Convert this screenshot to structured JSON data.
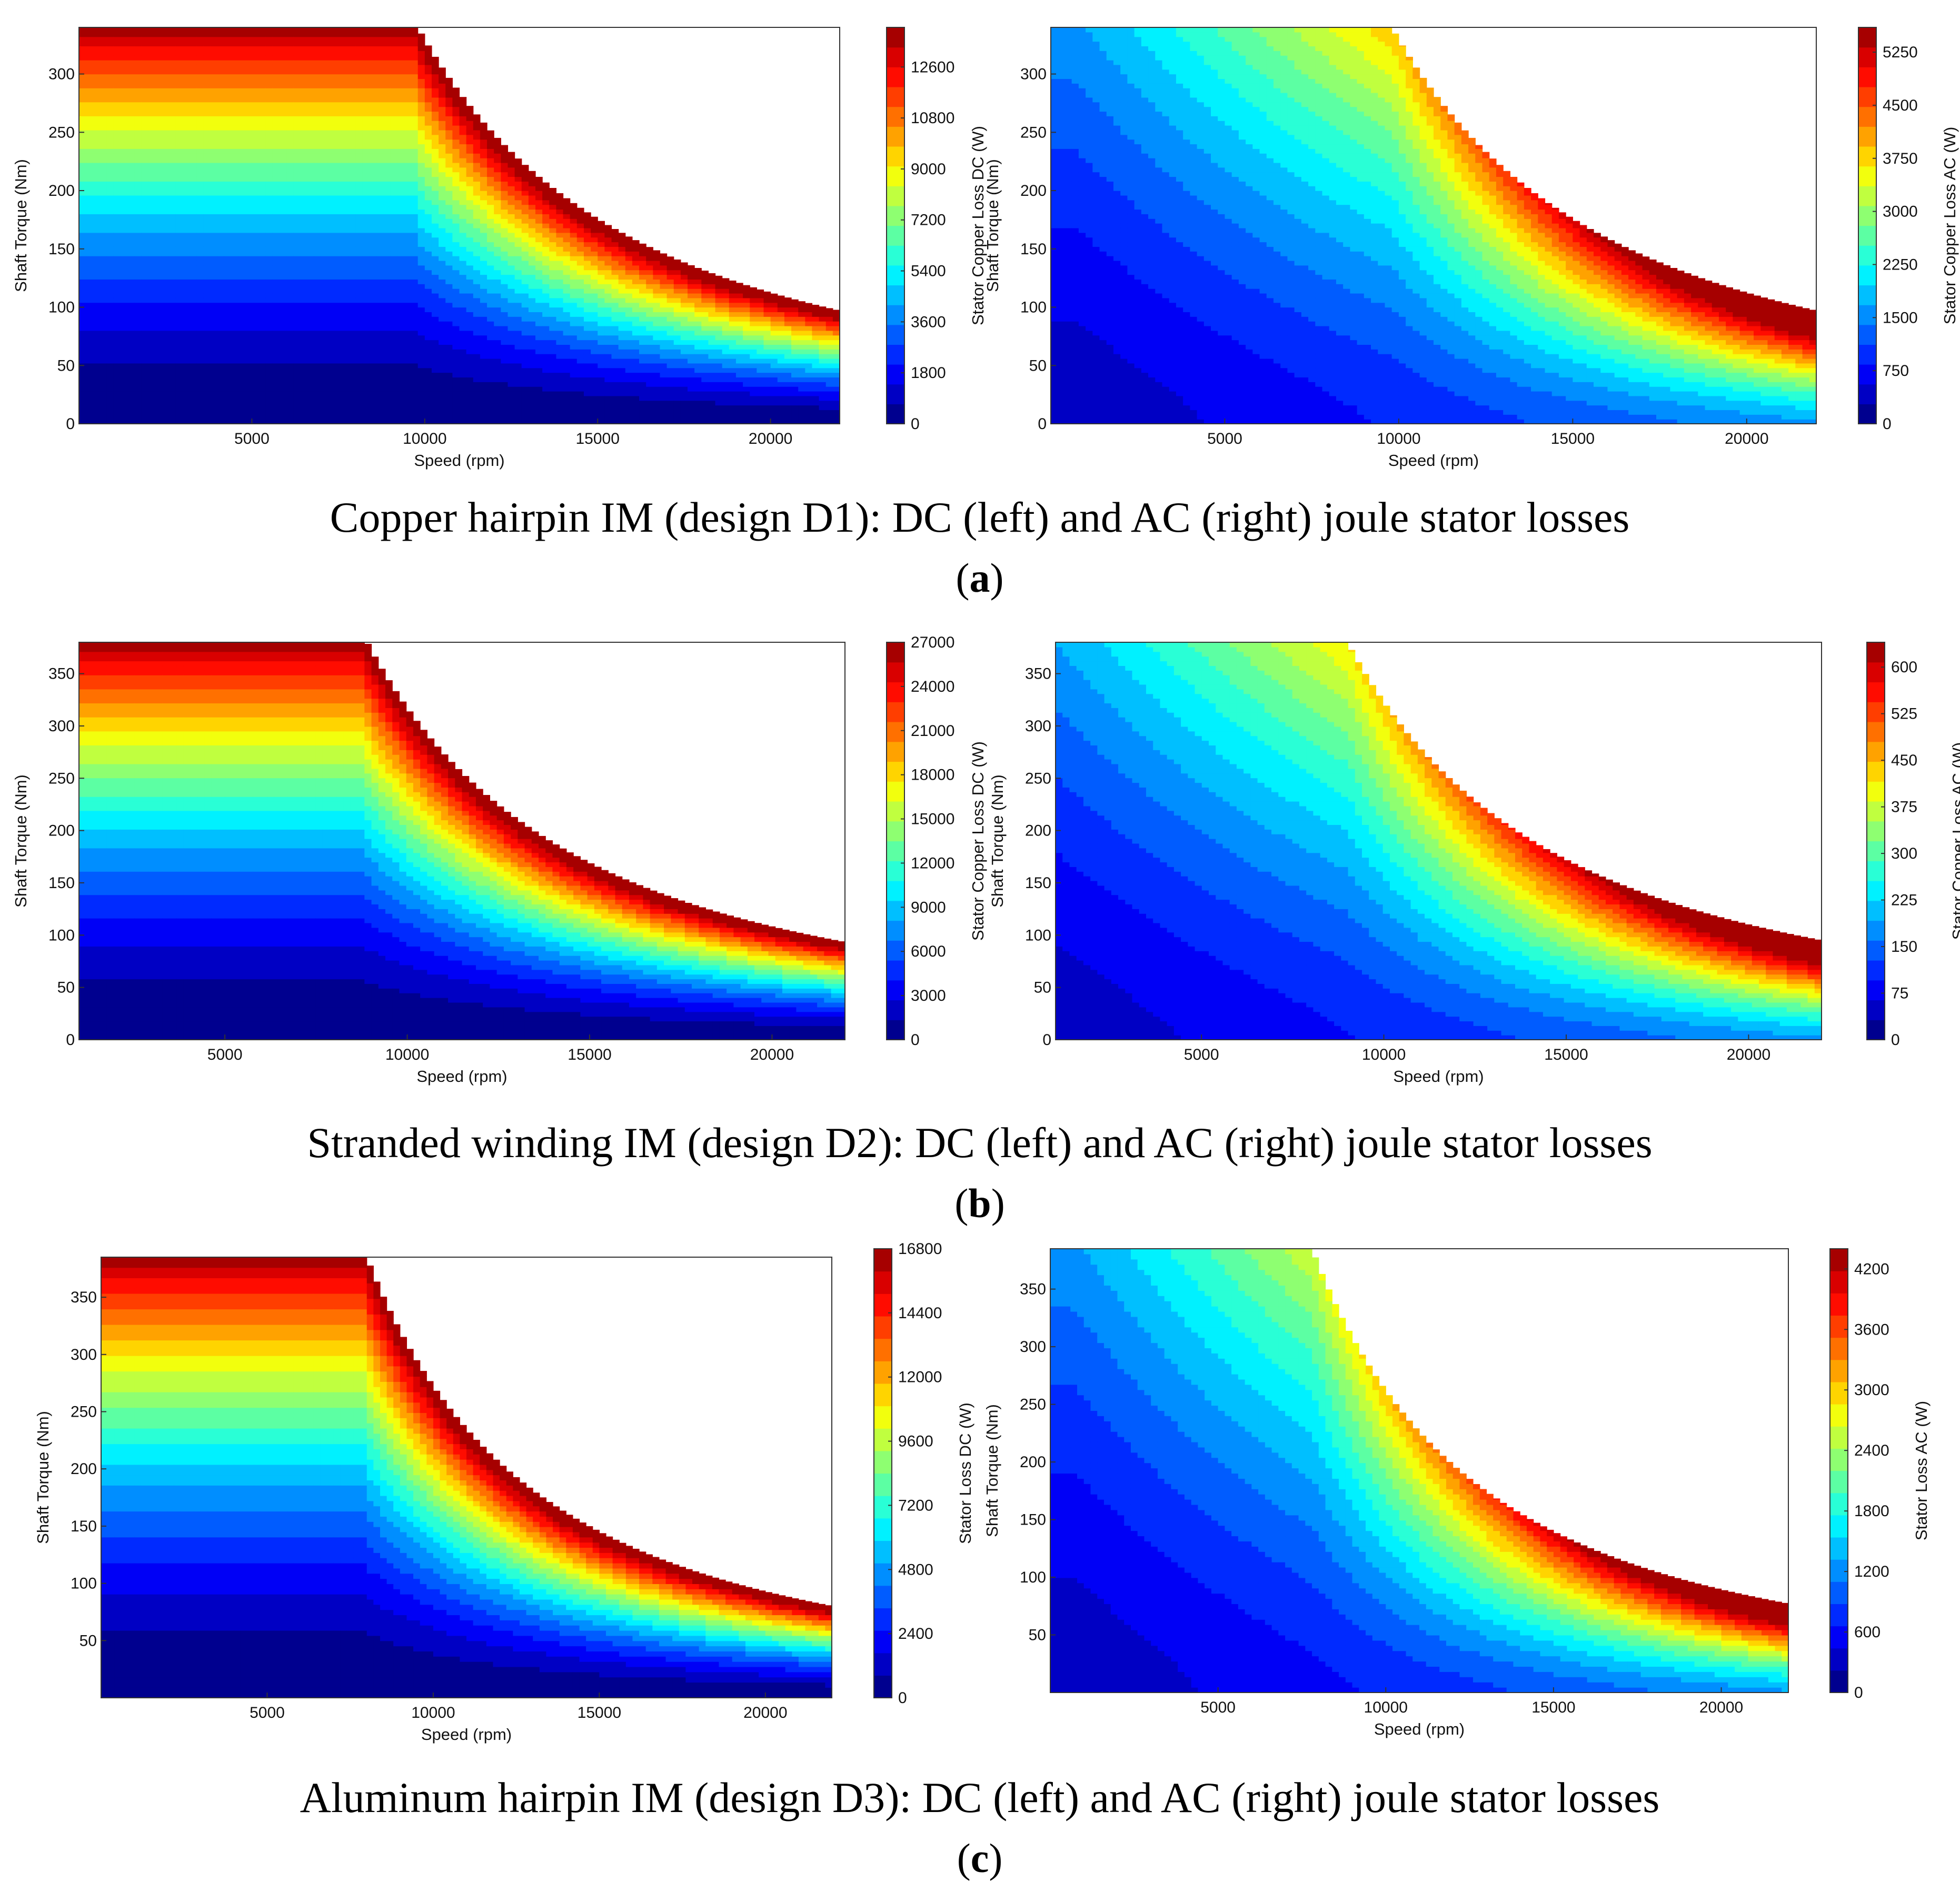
{
  "colormap": [
    "#00008f",
    "#0000c4",
    "#0000f6",
    "#002aff",
    "#005cff",
    "#008eff",
    "#00bfff",
    "#00f1ff",
    "#29ffd6",
    "#5cffa3",
    "#8eff71",
    "#c0ff3f",
    "#f2ff0d",
    "#ffd400",
    "#ffa200",
    "#ff7000",
    "#ff3e00",
    "#ff0c00",
    "#d90000",
    "#a60000"
  ],
  "captions": [
    {
      "text": "Copper hairpin IM (design D1): DC (left) and AC (right) joule stator losses",
      "label": "a"
    },
    {
      "text": "Stranded winding IM (design D2): DC (left) and AC (right) joule stator losses",
      "label": "b"
    },
    {
      "text": "Aluminum hairpin IM (design D3): DC (left) and AC (right) joule stator losses",
      "label": "c"
    }
  ],
  "chart_data": [
    {
      "type": "heatmap",
      "panel": "a",
      "side": "left",
      "title": "",
      "xlabel": "Speed  (rpm)",
      "ylabel": "Shaft Torque  (Nm)",
      "clabel": "Stator Copper Loss DC (W)",
      "xlim": [
        0,
        22000
      ],
      "ylim": [
        0,
        340
      ],
      "torque_max": 340,
      "base_speed": 9800,
      "xticks": [
        5000,
        10000,
        15000,
        20000
      ],
      "xtick_labels": [
        "5000",
        "10000",
        "15000",
        "20000"
      ],
      "yticks": [
        0,
        50,
        100,
        150,
        200,
        250,
        300
      ],
      "ytick_labels": [
        "0",
        "50",
        "100",
        "150",
        "200",
        "250",
        "300"
      ],
      "clim": [
        0,
        14000
      ],
      "cticks": [
        0,
        1800,
        3600,
        5400,
        7200,
        9000,
        10800,
        12600
      ],
      "ctick_labels": [
        "0",
        "1800",
        "3600",
        "5400",
        "7200",
        "9000",
        "10800",
        "12600"
      ],
      "loss_kind": "dc"
    },
    {
      "type": "heatmap",
      "panel": "a",
      "side": "right",
      "title": "",
      "xlabel": "Speed  (rpm)",
      "ylabel": "Shaft Torque  (Nm)",
      "clabel": "Stator Copper Loss AC (W)",
      "xlim": [
        0,
        22000
      ],
      "ylim": [
        0,
        340
      ],
      "torque_max": 340,
      "base_speed": 9800,
      "xticks": [
        5000,
        10000,
        15000,
        20000
      ],
      "xtick_labels": [
        "5000",
        "10000",
        "15000",
        "20000"
      ],
      "yticks": [
        0,
        50,
        100,
        150,
        200,
        250,
        300
      ],
      "ytick_labels": [
        "0",
        "50",
        "100",
        "150",
        "200",
        "250",
        "300"
      ],
      "clim": [
        0,
        5600
      ],
      "cticks": [
        0,
        750,
        1500,
        2250,
        3000,
        3750,
        4500,
        5250
      ],
      "ctick_labels": [
        "0",
        "750",
        "1500",
        "2250",
        "3000",
        "3750",
        "4500",
        "5250"
      ],
      "loss_kind": "ac"
    },
    {
      "type": "heatmap",
      "panel": "b",
      "side": "left",
      "title": "",
      "xlabel": "Speed  (rpm)",
      "ylabel": "Shaft Torque  (Nm)",
      "clabel": "Stator Copper Loss DC (W)",
      "xlim": [
        1000,
        22000
      ],
      "ylim": [
        0,
        380
      ],
      "torque_max": 380,
      "base_speed": 8900,
      "xticks": [
        5000,
        10000,
        15000,
        20000
      ],
      "xtick_labels": [
        "5000",
        "10000",
        "15000",
        "20000"
      ],
      "yticks": [
        0,
        50,
        100,
        150,
        200,
        250,
        300,
        350
      ],
      "ytick_labels": [
        "0",
        "50",
        "100",
        "150",
        "200",
        "250",
        "300",
        "350"
      ],
      "clim": [
        0,
        27000
      ],
      "cticks": [
        0,
        3000,
        6000,
        9000,
        12000,
        15000,
        18000,
        21000,
        24000,
        27000
      ],
      "ctick_labels": [
        "0",
        "3000",
        "6000",
        "9000",
        "12000",
        "15000",
        "18000",
        "21000",
        "24000",
        "27000"
      ],
      "loss_kind": "dc"
    },
    {
      "type": "heatmap",
      "panel": "b",
      "side": "right",
      "title": "",
      "xlabel": "Speed  (rpm)",
      "ylabel": "Shaft Torque  (Nm)",
      "clabel": "Stator Copper Loss AC (W)",
      "xlim": [
        1000,
        22000
      ],
      "ylim": [
        0,
        380
      ],
      "torque_max": 380,
      "base_speed": 9000,
      "xticks": [
        5000,
        10000,
        15000,
        20000
      ],
      "xtick_labels": [
        "5000",
        "10000",
        "15000",
        "20000"
      ],
      "yticks": [
        0,
        50,
        100,
        150,
        200,
        250,
        300,
        350
      ],
      "ytick_labels": [
        "0",
        "50",
        "100",
        "150",
        "200",
        "250",
        "300",
        "350"
      ],
      "clim": [
        0,
        640
      ],
      "cticks": [
        0,
        75,
        150,
        225,
        300,
        375,
        450,
        525,
        600
      ],
      "ctick_labels": [
        "0",
        "75",
        "150",
        "225",
        "300",
        "375",
        "450",
        "525",
        "600"
      ],
      "loss_kind": "ac"
    },
    {
      "type": "heatmap",
      "panel": "c",
      "side": "left",
      "title": "",
      "xlabel": "Speed  (rpm)",
      "ylabel": "Shaft Torque  (Nm)",
      "clabel": "Stator Loss DC (W)",
      "xlim": [
        0,
        22000
      ],
      "ylim": [
        0,
        385
      ],
      "torque_max": 385,
      "base_speed": 8000,
      "xticks": [
        5000,
        10000,
        15000,
        20000
      ],
      "xtick_labels": [
        "5000",
        "10000",
        "15000",
        "20000"
      ],
      "yticks": [
        50,
        100,
        150,
        200,
        250,
        300,
        350
      ],
      "ytick_labels": [
        "50",
        "100",
        "150",
        "200",
        "250",
        "300",
        "350"
      ],
      "clim": [
        0,
        16800
      ],
      "cticks": [
        0,
        2400,
        4800,
        7200,
        9600,
        12000,
        14400,
        16800
      ],
      "ctick_labels": [
        "0",
        "2400",
        "4800",
        "7200",
        "9600",
        "12000",
        "14400",
        "16800"
      ],
      "loss_kind": "dc"
    },
    {
      "type": "heatmap",
      "panel": "c",
      "side": "right",
      "title": "",
      "xlabel": "Speed  (rpm)",
      "ylabel": "Shaft Torque  (Nm)",
      "clabel": "Stator Loss AC (W)",
      "xlim": [
        0,
        22000
      ],
      "ylim": [
        0,
        385
      ],
      "torque_max": 385,
      "base_speed": 7800,
      "xticks": [
        5000,
        10000,
        15000,
        20000
      ],
      "xtick_labels": [
        "5000",
        "10000",
        "15000",
        "20000"
      ],
      "yticks": [
        50,
        100,
        150,
        200,
        250,
        300,
        350
      ],
      "ytick_labels": [
        "50",
        "100",
        "150",
        "200",
        "250",
        "300",
        "350"
      ],
      "clim": [
        0,
        4400
      ],
      "cticks": [
        0,
        600,
        1200,
        1800,
        2400,
        3000,
        3600,
        4200
      ],
      "ctick_labels": [
        "0",
        "600",
        "1200",
        "1800",
        "2400",
        "3000",
        "3600",
        "4200"
      ],
      "loss_kind": "ac"
    }
  ]
}
